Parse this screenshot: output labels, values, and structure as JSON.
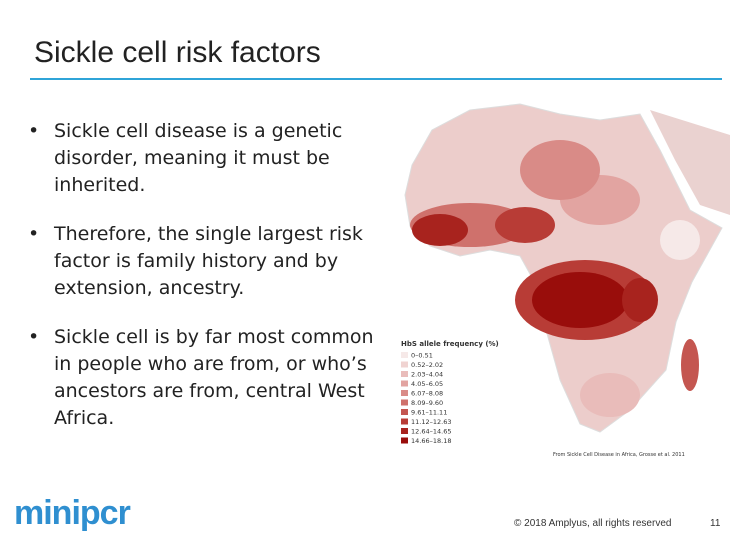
{
  "header": {
    "title": "Sickle cell risk factors"
  },
  "bullets": [
    "Sickle cell disease is a genetic disorder, meaning it must be inherited.",
    "Therefore, the single largest risk factor is family history and by extension, ancestry.",
    "Sickle cell is by far most common in people who are from, or who’s ancestors are from, central West Africa."
  ],
  "map": {
    "legend_title": "HbS allele frequency (%)",
    "legend": [
      {
        "label": "0–0.51",
        "color": "#f6e9e8"
      },
      {
        "label": "0.52–2.02",
        "color": "#f0d3d1"
      },
      {
        "label": "2.03–4.04",
        "color": "#e9bcba"
      },
      {
        "label": "4.05–6.05",
        "color": "#e2a4a1"
      },
      {
        "label": "6.07–8.08",
        "color": "#d98b87"
      },
      {
        "label": "8.09–9.60",
        "color": "#cf716c"
      },
      {
        "label": "9.61–11.11",
        "color": "#c45650"
      },
      {
        "label": "11.12–12.63",
        "color": "#b83c36"
      },
      {
        "label": "12.64–14.65",
        "color": "#a8231e"
      },
      {
        "label": "14.66–18.18",
        "color": "#990d0b"
      }
    ],
    "caption": "From Sickle Cell Disease in Africa, Grosse et al. 2011"
  },
  "footer": {
    "logo": "minipcr",
    "copyright": "© 2018 Amplyus, all rights reserved",
    "page": "11"
  }
}
